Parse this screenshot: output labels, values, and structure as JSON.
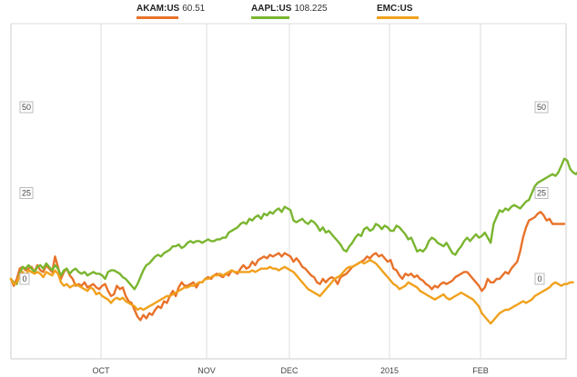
{
  "chart_data": {
    "type": "line",
    "x_ticks": [
      "OCT",
      "NOV",
      "DEC",
      "2015",
      "FEB"
    ],
    "y_ticks": [
      50,
      25,
      0
    ],
    "ylim": [
      -25,
      75
    ],
    "grid": true,
    "legend": "top",
    "series": [
      {
        "name": "AKAM:US",
        "last_value": "60.51",
        "color": "#e8722a",
        "values": [
          0.0,
          -2.0,
          0.0,
          3.0,
          3.5,
          2.5,
          3.0,
          3.5,
          2.0,
          4.0,
          2.5,
          2.0,
          4.0,
          3.0,
          2.0,
          6.5,
          3.5,
          0.0,
          2.0,
          3.0,
          1.0,
          0.0,
          -2.0,
          -1.5,
          -2.0,
          -1.0,
          -2.5,
          -2.0,
          -1.5,
          -2.5,
          -3.0,
          -2.0,
          -1.5,
          -3.5,
          -5.0,
          -4.5,
          -2.0,
          -3.0,
          -2.5,
          -5.0,
          -6.5,
          -7.0,
          -9.0,
          -11.0,
          -12.0,
          -10.5,
          -11.5,
          -10.0,
          -10.5,
          -9.0,
          -8.0,
          -8.5,
          -6.5,
          -7.0,
          -5.0,
          -3.5,
          -5.0,
          -2.5,
          -1.0,
          -2.0,
          -2.0,
          -1.5,
          -1.0,
          -2.5,
          -1.0,
          -1.0,
          0.0,
          0.5,
          0.0,
          1.0,
          1.5,
          1.0,
          0.5,
          1.5,
          1.0,
          2.5,
          2.0,
          1.5,
          3.0,
          4.0,
          3.0,
          3.5,
          5.0,
          4.0,
          5.5,
          6.0,
          6.5,
          6.0,
          7.0,
          6.5,
          7.0,
          7.5,
          6.5,
          7.5,
          7.0,
          6.5,
          5.0,
          6.0,
          5.0,
          3.5,
          3.0,
          2.0,
          1.0,
          0.5,
          -1.0,
          -1.5,
          0.0,
          -1.0,
          0.0,
          0.5,
          0.0,
          -1.5,
          0.5,
          1.0,
          1.5,
          2.5,
          3.5,
          4.0,
          4.5,
          5.0,
          5.5,
          6.5,
          6.0,
          7.0,
          7.5,
          6.5,
          7.0,
          6.0,
          5.0,
          5.5,
          3.0,
          2.5,
          1.0,
          0.0,
          1.5,
          1.0,
          1.5,
          0.5,
          1.0,
          0.0,
          -0.5,
          -1.5,
          -2.0,
          -3.0,
          -2.0,
          -2.5,
          -1.5,
          -1.0,
          -1.5,
          -1.0,
          -0.5,
          0.5,
          1.0,
          1.5,
          2.0,
          2.0,
          1.0,
          0.0,
          -1.0,
          -2.0,
          -3.5,
          -2.5,
          0.0,
          -1.0,
          -1.0,
          0.0,
          0.0,
          1.0,
          2.0,
          1.5,
          3.0,
          4.0,
          5.0,
          8.0,
          12.0,
          15.0,
          17.0,
          17.5,
          18.0,
          19.0,
          19.5,
          18.5,
          17.0,
          17.5,
          16.0,
          16.0,
          16.0,
          16.0,
          16.0
        ]
      },
      {
        "name": "AAPL:US",
        "last_value": "108.225",
        "color": "#7ab52f",
        "values": [
          0.0,
          -1.0,
          -1.5,
          1.5,
          3.5,
          3.0,
          4.0,
          3.0,
          2.0,
          3.5,
          4.0,
          3.0,
          4.5,
          3.5,
          2.5,
          4.0,
          3.0,
          1.0,
          2.5,
          3.0,
          1.5,
          2.5,
          3.0,
          2.0,
          1.5,
          2.0,
          1.0,
          1.5,
          2.0,
          1.5,
          1.5,
          1.0,
          0.0,
          2.0,
          2.5,
          2.5,
          2.0,
          1.5,
          0.5,
          0.0,
          -1.0,
          -2.0,
          -3.0,
          -1.5,
          0.5,
          2.5,
          4.0,
          4.5,
          5.5,
          6.5,
          7.0,
          6.5,
          7.5,
          8.0,
          8.5,
          9.5,
          9.5,
          10.0,
          9.0,
          9.5,
          10.5,
          11.0,
          10.5,
          11.0,
          11.0,
          10.5,
          11.0,
          11.5,
          11.0,
          11.0,
          11.5,
          11.5,
          12.0,
          12.0,
          13.5,
          14.0,
          14.5,
          15.0,
          16.0,
          16.5,
          16.0,
          17.5,
          17.0,
          18.0,
          18.5,
          17.5,
          19.0,
          18.5,
          19.5,
          19.0,
          20.0,
          20.5,
          19.5,
          21.0,
          20.5,
          20.0,
          17.0,
          16.5,
          17.0,
          17.5,
          16.5,
          16.0,
          17.0,
          16.5,
          15.5,
          14.0,
          15.0,
          13.5,
          14.0,
          13.0,
          12.0,
          11.0,
          10.0,
          8.5,
          8.0,
          9.5,
          10.5,
          12.0,
          13.0,
          12.5,
          14.5,
          15.0,
          14.0,
          14.5,
          16.0,
          15.5,
          14.5,
          15.5,
          15.0,
          14.0,
          14.0,
          15.5,
          15.0,
          14.0,
          13.0,
          11.5,
          12.0,
          10.0,
          8.0,
          8.5,
          8.0,
          9.0,
          11.0,
          12.0,
          11.5,
          10.5,
          10.0,
          9.5,
          10.5,
          9.0,
          7.5,
          7.0,
          8.5,
          9.5,
          11.0,
          12.0,
          11.0,
          12.0,
          13.0,
          12.0,
          12.5,
          13.5,
          12.0,
          10.5,
          16.0,
          18.0,
          20.0,
          19.5,
          20.5,
          20.0,
          21.0,
          21.5,
          21.0,
          20.5,
          21.5,
          22.5,
          23.0,
          25.0,
          27.0,
          28.0,
          28.5,
          29.0,
          29.5,
          30.0,
          30.5,
          30.0,
          31.0,
          33.0,
          35.0,
          34.5,
          32.0,
          31.0,
          30.5,
          31.5,
          30.5,
          29.5
        ]
      },
      {
        "name": "EMC:US",
        "last_value": "",
        "color": "#f0a11c",
        "values": [
          0.0,
          -1.5,
          -1.0,
          1.0,
          2.0,
          1.0,
          2.5,
          2.0,
          1.5,
          2.0,
          1.5,
          0.5,
          2.0,
          1.5,
          1.0,
          2.5,
          1.5,
          -1.0,
          -2.0,
          -1.5,
          -2.5,
          -2.0,
          -1.5,
          -2.0,
          -2.5,
          -3.0,
          -3.5,
          -2.5,
          -3.0,
          -4.5,
          -4.0,
          -5.0,
          -5.5,
          -6.0,
          -7.0,
          -6.0,
          -5.5,
          -6.0,
          -5.5,
          -6.5,
          -7.0,
          -7.5,
          -8.0,
          -9.0,
          -8.5,
          -9.0,
          -8.5,
          -8.0,
          -7.5,
          -7.0,
          -6.5,
          -6.0,
          -5.5,
          -5.0,
          -5.0,
          -4.5,
          -4.0,
          -3.5,
          -3.0,
          -2.5,
          -2.5,
          -2.0,
          -2.0,
          -1.5,
          -1.0,
          -1.0,
          0.0,
          0.0,
          0.5,
          1.0,
          1.0,
          1.5,
          1.0,
          1.5,
          2.0,
          2.5,
          2.0,
          2.0,
          2.0,
          2.0,
          2.0,
          2.0,
          2.5,
          2.0,
          2.5,
          3.0,
          3.0,
          3.0,
          3.5,
          3.0,
          3.0,
          2.5,
          3.0,
          3.5,
          3.0,
          2.5,
          2.0,
          1.0,
          0.0,
          -1.0,
          -2.0,
          -3.0,
          -3.5,
          -4.0,
          -4.5,
          -5.0,
          -4.0,
          -3.0,
          -2.0,
          -1.0,
          0.0,
          0.5,
          1.0,
          2.0,
          3.0,
          3.5,
          3.5,
          4.0,
          4.5,
          5.0,
          4.5,
          5.0,
          5.5,
          5.0,
          4.5,
          3.5,
          2.5,
          1.5,
          0.5,
          -0.5,
          -1.5,
          -2.0,
          -3.0,
          -2.5,
          -2.0,
          -1.0,
          -1.5,
          -2.0,
          -2.5,
          -3.5,
          -4.0,
          -4.5,
          -5.0,
          -5.5,
          -6.0,
          -5.5,
          -5.0,
          -4.5,
          -5.5,
          -6.0,
          -5.5,
          -5.0,
          -4.5,
          -4.0,
          -4.5,
          -5.0,
          -5.5,
          -6.0,
          -7.0,
          -8.0,
          -10.0,
          -11.0,
          -12.0,
          -13.0,
          -12.0,
          -11.0,
          -10.0,
          -9.5,
          -9.0,
          -9.0,
          -8.5,
          -8.0,
          -7.5,
          -7.0,
          -6.5,
          -7.0,
          -6.5,
          -6.0,
          -5.0,
          -4.5,
          -4.0,
          -3.5,
          -3.0,
          -2.5,
          -1.5,
          -1.0,
          -1.5,
          -2.0,
          -1.5,
          -1.5,
          -1.0,
          -1.0
        ]
      }
    ]
  }
}
